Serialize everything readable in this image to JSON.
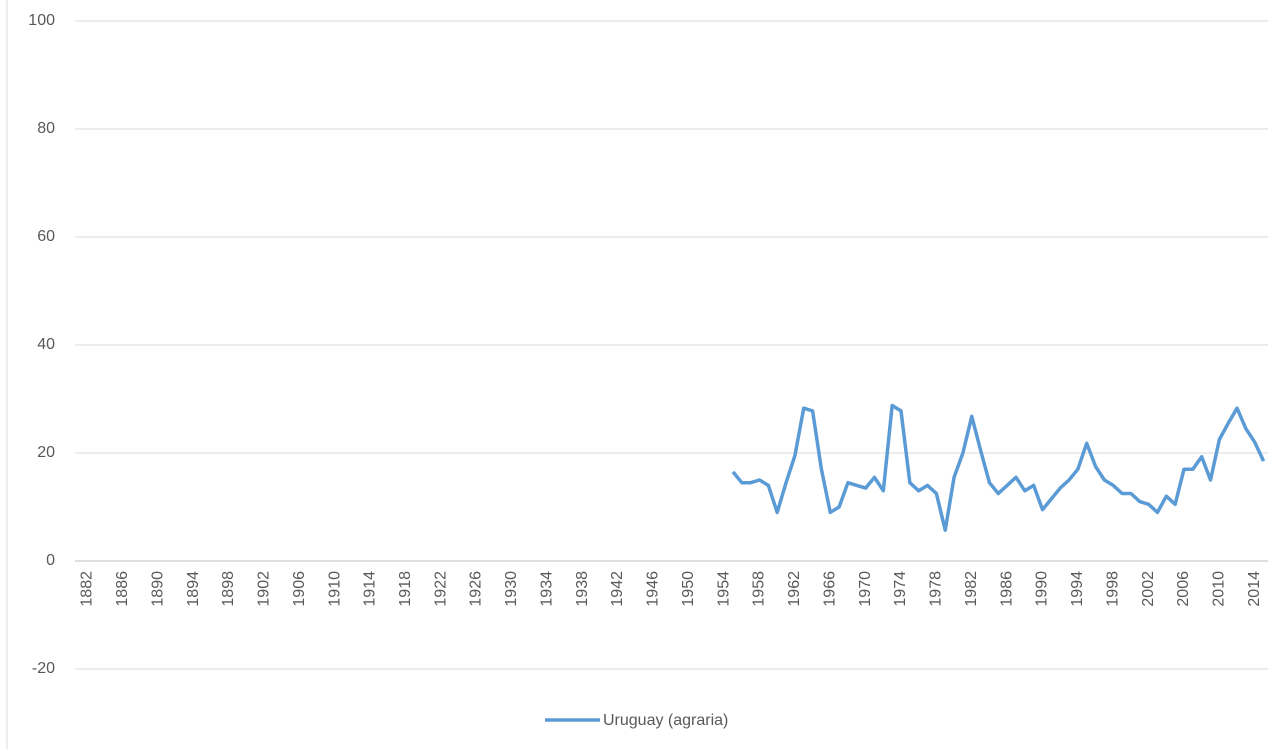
{
  "chart_data": {
    "type": "line",
    "categories": [
      "1882",
      null,
      null,
      null,
      "1886",
      null,
      null,
      null,
      "1890",
      null,
      null,
      null,
      "1894",
      null,
      null,
      null,
      "1898",
      null,
      null,
      null,
      "1902",
      null,
      null,
      null,
      "1906",
      null,
      null,
      null,
      "1910",
      null,
      null,
      null,
      "1914",
      null,
      null,
      null,
      "1918",
      null,
      null,
      null,
      "1922",
      null,
      null,
      null,
      "1926",
      null,
      null,
      null,
      "1930",
      null,
      null,
      null,
      "1934",
      null,
      null,
      null,
      "1938",
      null,
      null,
      null,
      "1942",
      null,
      null,
      null,
      "1946",
      null,
      null,
      null,
      "1950",
      null,
      null,
      null,
      "1954",
      null,
      null,
      null,
      "1958",
      null,
      null,
      null,
      "1962",
      null,
      null,
      null,
      "1966",
      null,
      null,
      null,
      "1970",
      null,
      null,
      null,
      "1974",
      null,
      null,
      null,
      "1978",
      null,
      null,
      null,
      "1982",
      null,
      null,
      null,
      "1986",
      null,
      null,
      null,
      "1990",
      null,
      null,
      null,
      "1994",
      null,
      null,
      null,
      "1998",
      null,
      null,
      null,
      "2002",
      null,
      null,
      null,
      "2006",
      null,
      null,
      null,
      "2010",
      null,
      null,
      null,
      "2014",
      null
    ],
    "series": [
      {
        "name": "Uruguay (agraria)",
        "color": "#5b9bd5",
        "values": [
          null,
          null,
          null,
          null,
          null,
          null,
          null,
          null,
          null,
          null,
          null,
          null,
          null,
          null,
          null,
          null,
          null,
          null,
          null,
          null,
          null,
          null,
          null,
          null,
          null,
          null,
          null,
          null,
          null,
          null,
          null,
          null,
          null,
          null,
          null,
          null,
          null,
          null,
          null,
          null,
          null,
          null,
          null,
          null,
          null,
          null,
          null,
          null,
          null,
          null,
          null,
          null,
          null,
          null,
          null,
          null,
          null,
          null,
          null,
          null,
          null,
          null,
          null,
          null,
          null,
          null,
          null,
          null,
          null,
          null,
          null,
          null,
          null,
          16.5,
          14.5,
          14.5,
          15,
          14,
          9,
          14.5,
          19.5,
          28.3,
          27.8,
          17,
          9,
          10,
          14.5,
          14,
          13.5,
          15.5,
          13,
          28.8,
          27.8,
          14.5,
          13,
          14,
          12.5,
          5.7,
          15.5,
          20,
          26.8,
          20.5,
          14.5,
          12.5,
          14,
          15.5,
          13,
          14,
          9.5,
          11.5,
          13.5,
          15,
          17,
          21.8,
          17.5,
          15,
          14,
          12.5,
          12.5,
          11,
          10.5,
          9,
          12,
          10.5,
          17,
          17,
          19.3,
          15,
          22.5,
          25.5,
          28.3,
          24.5,
          22,
          18.5
        ]
      }
    ],
    "ylim": [
      -20,
      100
    ],
    "yticks": [
      -20,
      0,
      20,
      40,
      60,
      80,
      100
    ],
    "grid": true,
    "legend": "bottom"
  }
}
